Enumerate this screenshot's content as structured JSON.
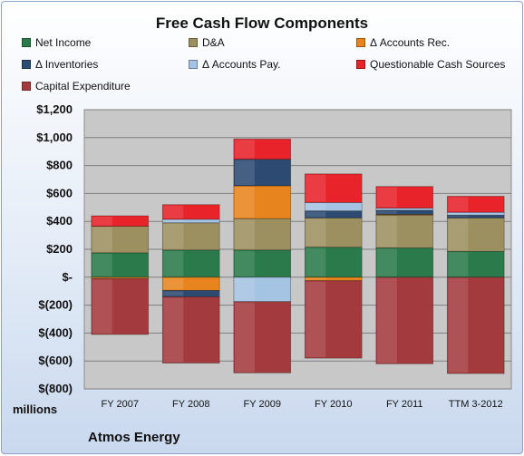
{
  "chart_data": {
    "type": "bar",
    "stacked": true,
    "title": "Free Cash Flow Components",
    "units_label": "millions",
    "company": "Atmos Energy",
    "categories": [
      "FY 2007",
      "FY 2008",
      "FY 2009",
      "FY 2010",
      "FY 2011",
      "TTM 3-2012"
    ],
    "ylim": [
      -800,
      1200
    ],
    "yticks": [
      {
        "value": 1200,
        "label": "$1,200"
      },
      {
        "value": 1000,
        "label": "$1,000"
      },
      {
        "value": 800,
        "label": "$800"
      },
      {
        "value": 600,
        "label": "$600"
      },
      {
        "value": 400,
        "label": "$400"
      },
      {
        "value": 200,
        "label": "$200"
      },
      {
        "value": 0,
        "label": "$-"
      },
      {
        "value": -200,
        "label": "$(200)"
      },
      {
        "value": -400,
        "label": "$(400)"
      },
      {
        "value": -600,
        "label": "$(600)"
      },
      {
        "value": -800,
        "label": "$(800)"
      }
    ],
    "grid": true,
    "legend_position": "top",
    "series": [
      {
        "name": "Net Income",
        "color": "#2a7a4b",
        "values": [
          175,
          195,
          195,
          215,
          210,
          185
        ]
      },
      {
        "name": "D&A",
        "color": "#9c9060",
        "values": [
          190,
          195,
          225,
          210,
          235,
          240
        ]
      },
      {
        "name": "Δ Accounts Rec.",
        "color": "#e8841e",
        "values": [
          -10,
          -95,
          235,
          -25,
          5,
          0
        ]
      },
      {
        "name": "Δ Inventories",
        "color": "#2c4a72",
        "values": [
          0,
          -45,
          190,
          50,
          30,
          20
        ]
      },
      {
        "name": "Δ Accounts Pay.",
        "color": "#a5c3e3",
        "values": [
          0,
          25,
          -175,
          60,
          15,
          20
        ]
      },
      {
        "name": "Questionable Cash Sources",
        "color": "#e8232a",
        "values": [
          75,
          105,
          145,
          205,
          155,
          115
        ]
      },
      {
        "name": "Capital Expenditure",
        "color": "#a33b3e",
        "values": [
          -400,
          -475,
          -510,
          -555,
          -620,
          -690
        ]
      }
    ]
  }
}
